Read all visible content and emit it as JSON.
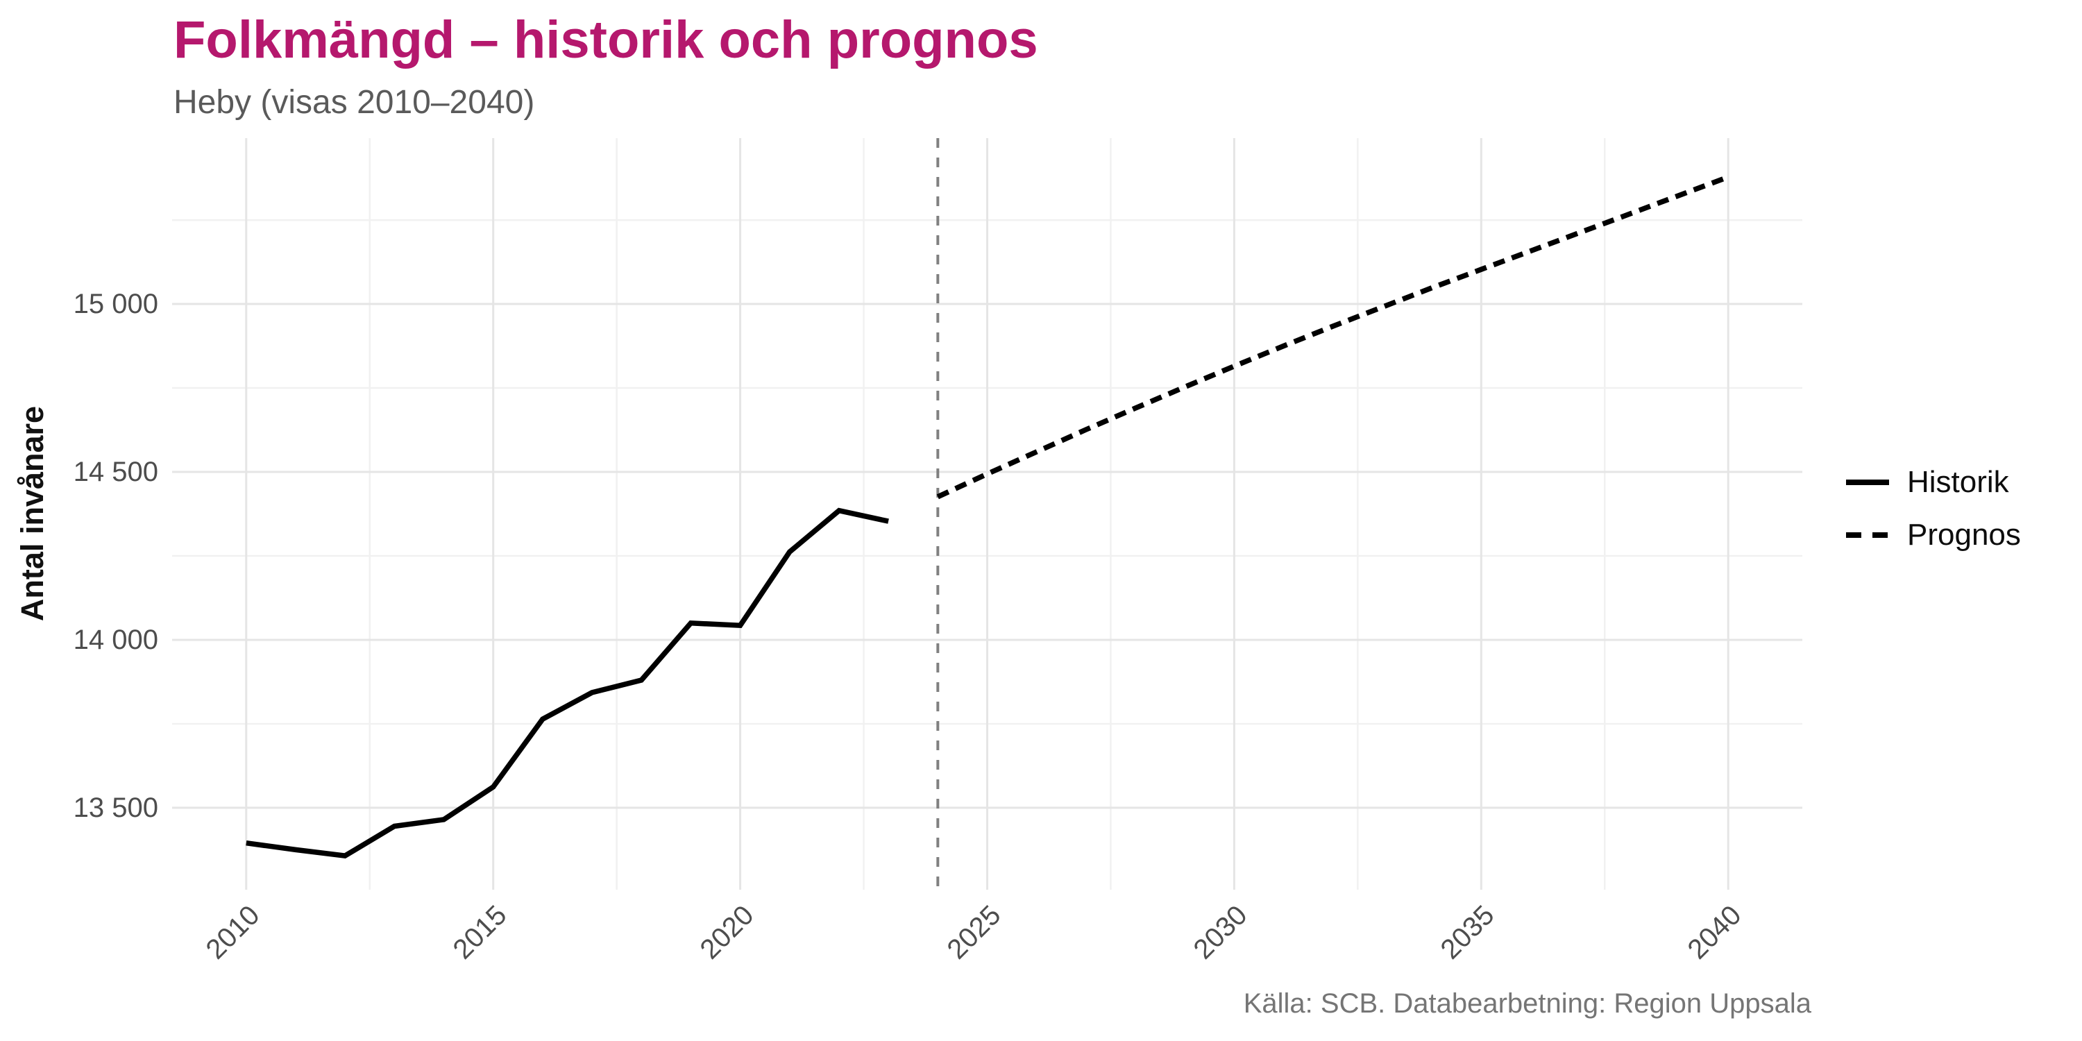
{
  "header": {
    "title": "Folkmängd – historik och prognos",
    "subtitle": "Heby (visas 2010–2040)"
  },
  "footer": {
    "source": "Källa: SCB. Databearbetning: Region Uppsala"
  },
  "colors": {
    "title": "#b5186d",
    "subtitle": "#5a5a5a",
    "axis_text": "#4d4d4d",
    "series_line": "#000000",
    "forecast_vline": "#808080",
    "grid_major": "#e5e5e5",
    "grid_minor": "#f1f1f1",
    "background": "#ffffff"
  },
  "chart_data": {
    "type": "line",
    "title": "Folkmängd – historik och prognos",
    "subtitle": "Heby (visas 2010–2040)",
    "xlabel": "",
    "ylabel": "Antal invånare",
    "xlim": [
      2008.5,
      2041.5
    ],
    "ylim": [
      13256,
      15494
    ],
    "grid": "on",
    "x_ticks": [
      2010,
      2015,
      2020,
      2025,
      2030,
      2035,
      2040
    ],
    "x_tick_labels": [
      "2010",
      "2015",
      "2020",
      "2025",
      "2030",
      "2035",
      "2040"
    ],
    "x_minor_ticks": [
      2012.5,
      2017.5,
      2022.5,
      2027.5,
      2032.5,
      2037.5
    ],
    "y_ticks": [
      13500,
      14000,
      14500,
      15000
    ],
    "y_tick_labels": [
      "13 500",
      "14 000",
      "14 500",
      "15 000"
    ],
    "y_minor_ticks": [
      13750,
      14250,
      14750,
      15250
    ],
    "vline": {
      "x": 2024,
      "style": "dashed",
      "color": "#808080"
    },
    "series": [
      {
        "name": "Historik",
        "style": "solid",
        "x": [
          2010,
          2011,
          2012,
          2013,
          2014,
          2015,
          2016,
          2017,
          2018,
          2019,
          2020,
          2021,
          2022,
          2023
        ],
        "values": [
          13395,
          13375,
          13357,
          13445,
          13465,
          13562,
          13764,
          13843,
          13880,
          14050,
          14043,
          14262,
          14385,
          14353
        ]
      },
      {
        "name": "Prognos",
        "style": "dashed",
        "x": [
          2024,
          2025,
          2026,
          2027,
          2028,
          2029,
          2030,
          2031,
          2032,
          2033,
          2034,
          2035,
          2036,
          2037,
          2038,
          2039,
          2040
        ],
        "values": [
          14426,
          14494,
          14560,
          14626,
          14690,
          14753,
          14815,
          14875,
          14934,
          14991,
          15048,
          15103,
          15158,
          15213,
          15268,
          15323,
          15378
        ]
      }
    ],
    "legend": {
      "position": "right",
      "entries": [
        {
          "label": "Historik",
          "style": "solid"
        },
        {
          "label": "Prognos",
          "style": "dashed"
        }
      ]
    }
  }
}
